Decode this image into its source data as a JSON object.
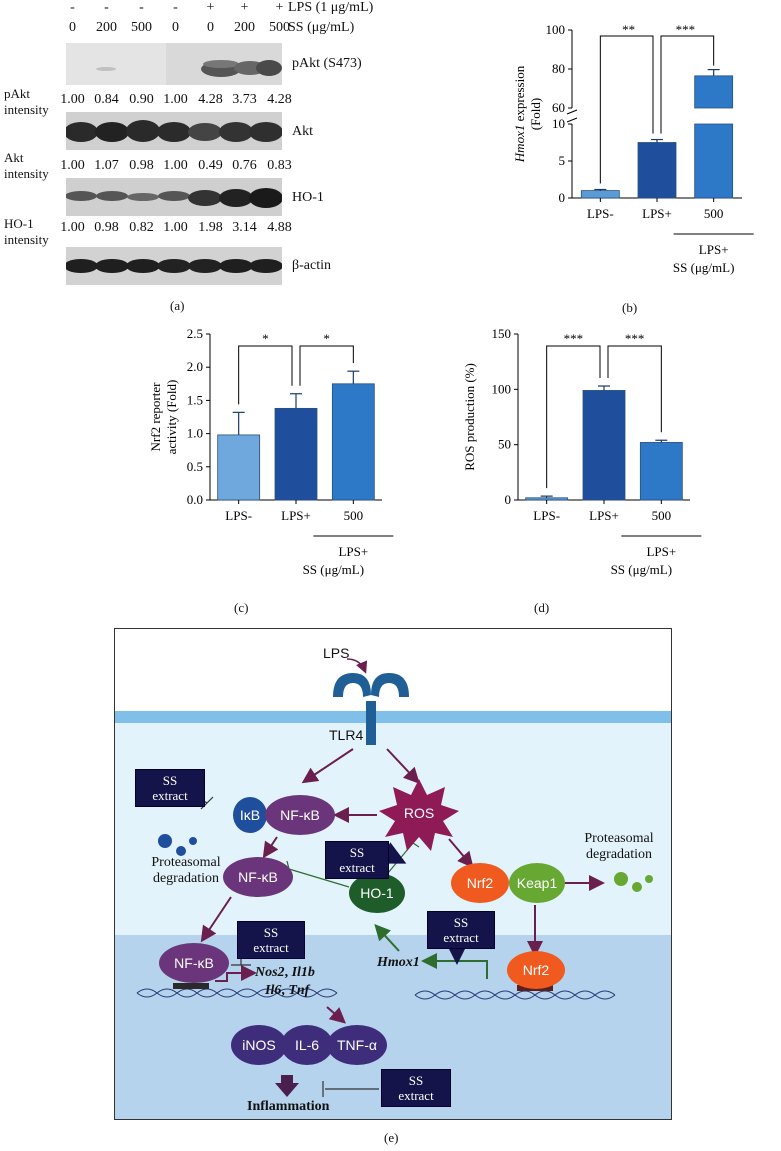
{
  "panel_a": {
    "label": "(a)",
    "lps_row": {
      "label": "LPS (1 μg/mL)",
      "values": [
        "-",
        "-",
        "-",
        "-",
        "+",
        "+",
        "+"
      ]
    },
    "ss_row": {
      "label": "SS (μg/mL)",
      "values": [
        "0",
        "200",
        "500",
        "0",
        "0",
        "200",
        "500"
      ]
    },
    "blots": [
      {
        "name": "pAkt (S473)",
        "intensity_label": "pAkt intensity",
        "intensities": [
          "1.00",
          "0.84",
          "0.90",
          "1.00",
          "4.28",
          "3.73",
          "4.28"
        ]
      },
      {
        "name": "Akt",
        "intensity_label": "Akt intensity",
        "intensities": [
          "1.00",
          "1.07",
          "0.98",
          "1.00",
          "0.49",
          "0.76",
          "0.83"
        ]
      },
      {
        "name": "HO-1",
        "intensity_label": "HO-1 intensity",
        "intensities": [
          "1.00",
          "0.98",
          "0.82",
          "1.00",
          "1.98",
          "3.14",
          "4.88"
        ]
      },
      {
        "name": "β-actin"
      }
    ]
  },
  "chart_data": [
    {
      "panel": "(b)",
      "type": "bar",
      "categories": [
        "LPS-",
        "LPS+",
        "500"
      ],
      "values": [
        1.0,
        7.5,
        76.5
      ],
      "errors": [
        0.15,
        0.4,
        3.2
      ],
      "colors": [
        "#5b9bd5",
        "#1f4e9c",
        "#2e78c8"
      ],
      "ylabel_italic": "Hmox1",
      "ylabel_rest": " expression",
      "ylabel_unit": "(Fold)",
      "y_broken": true,
      "lower_ticks": [
        "0",
        "5",
        "10"
      ],
      "upper_ticks": [
        "60",
        "80",
        "100"
      ],
      "group_label": "LPS+",
      "group_sublabel": "SS (μg/mL)",
      "significance": [
        {
          "from": 0,
          "to": 1,
          "label": "**"
        },
        {
          "from": 1,
          "to": 2,
          "label": "***"
        }
      ]
    },
    {
      "panel": "(c)",
      "type": "bar",
      "categories": [
        "LPS-",
        "LPS+",
        "500"
      ],
      "values": [
        0.98,
        1.38,
        1.75
      ],
      "errors": [
        0.34,
        0.22,
        0.19
      ],
      "colors": [
        "#6fa8dc",
        "#1f4e9c",
        "#2e78c8"
      ],
      "ylabel": "Nrf2 reporter activity (Fold)",
      "ylabel_line1": "Nrf2 reporter",
      "ylabel_line2": "activity (Fold)",
      "ylim": [
        0,
        2.5
      ],
      "yticks": [
        "0.0",
        "0.5",
        "1.0",
        "1.5",
        "2.0",
        "2.5"
      ],
      "group_label": "LPS+",
      "group_sublabel": "SS (μg/mL)",
      "significance": [
        {
          "from": 0,
          "to": 1,
          "label": "*"
        },
        {
          "from": 1,
          "to": 2,
          "label": "*"
        }
      ]
    },
    {
      "panel": "(d)",
      "type": "bar",
      "categories": [
        "LPS-",
        "LPS+",
        "500"
      ],
      "values": [
        2,
        99,
        52
      ],
      "errors": [
        1.5,
        4,
        2
      ],
      "colors": [
        "#5b9bd5",
        "#1f4e9c",
        "#2e78c8"
      ],
      "ylabel": "ROS production (%)",
      "ylim": [
        0,
        150
      ],
      "yticks": [
        "0",
        "50",
        "100",
        "150"
      ],
      "group_label": "LPS+",
      "group_sublabel": "SS (μg/mL)",
      "significance": [
        {
          "from": 0,
          "to": 1,
          "label": "***"
        },
        {
          "from": 1,
          "to": 2,
          "label": "***"
        }
      ]
    }
  ],
  "panel_labels": {
    "b": "(b)",
    "c": "(c)",
    "d": "(d)",
    "e": "(e)"
  },
  "diagram": {
    "lps": "LPS",
    "tlr4": "TLR4",
    "ikb": "IκB",
    "nfkb": "NF-κB",
    "ros": "ROS",
    "ho1": "HO-1",
    "nrf2": "Nrf2",
    "keap1": "Keap1",
    "ss_line1": "SS",
    "ss_line2": "extract",
    "proteasomal_left_1": "Proteasomal",
    "proteasomal_left_2": "degradation",
    "proteasomal_right_1": "Proteasomal",
    "proteasomal_right_2": "degradation",
    "genes_line1_a": "Nos2",
    "genes_line1_sep": ", ",
    "genes_line1_b": "Il1b",
    "genes_line2_a": "Il6",
    "genes_line2_sep": ", ",
    "genes_line2_b": "Tnf",
    "hmox1": "Hmox1",
    "inos": "iNOS",
    "il6": "IL-6",
    "tnfa": "TNF-α",
    "inflammation": "Inflammation",
    "colors": {
      "membrane": "#7fbfea",
      "cytoplasm": "#e3f3fb",
      "nucleus": "#b5d3ec",
      "receptor": "#1f5f96",
      "purple": "#6a357a",
      "arrow": "#6b1f4f",
      "ros": "#8e1b55",
      "ho1": "#1e5c2a",
      "nrf2": "#f05a1e",
      "keap1": "#67a832",
      "ikb": "#1f4e9c",
      "ssbox": "#14144a",
      "green_arrow": "#2e6d2e",
      "cytokine": "#3d2d7a"
    }
  }
}
